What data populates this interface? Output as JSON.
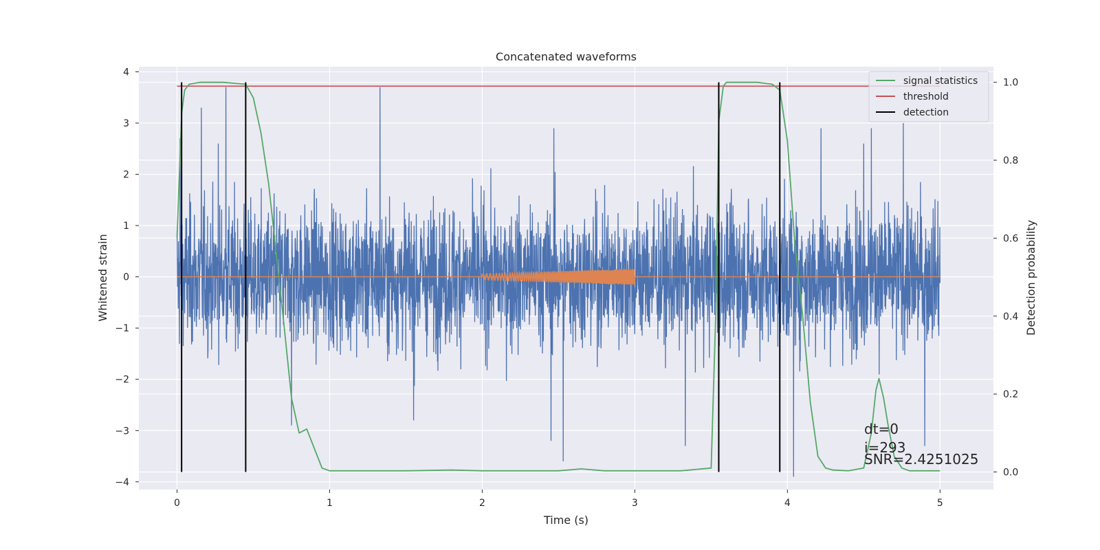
{
  "chart_data": {
    "type": "line",
    "title": "Concatenated waveforms",
    "xlabel": "Time (s)",
    "ylabel": "Whitened strain",
    "y2label": "Detection probability",
    "xlim": [
      -0.25,
      5.35
    ],
    "ylim": [
      -4.15,
      4.1
    ],
    "y2lim": [
      -0.045,
      1.04
    ],
    "x_ticks": [
      0,
      1,
      2,
      3,
      4,
      5
    ],
    "y_ticks": [
      -4,
      -3,
      -2,
      -1,
      0,
      1,
      2,
      3,
      4
    ],
    "y2_ticks": [
      0.0,
      0.2,
      0.4,
      0.6,
      0.8,
      1.0
    ],
    "grid": true,
    "legend_position": "top-right",
    "colors": {
      "strain": "#4c72b0",
      "template": "#dd8452",
      "signal_statistics": "#55a868",
      "threshold": "#c44e52",
      "detection": "#000000",
      "plot_background": "#eaeaf2",
      "grid": "#ffffff"
    },
    "series": [
      {
        "key": "strain",
        "axis": "left",
        "x_range": [
          0,
          5
        ],
        "envelope_typical": 2.1,
        "peaks": [
          {
            "x": 0.02,
            "y": 2.7
          },
          {
            "x": 0.16,
            "y": 3.3
          },
          {
            "x": 0.27,
            "y": 2.6
          },
          {
            "x": 0.32,
            "y": 3.7
          },
          {
            "x": 0.45,
            "y": -2.6
          },
          {
            "x": 0.75,
            "y": -2.9
          },
          {
            "x": 1.33,
            "y": 3.7
          },
          {
            "x": 1.55,
            "y": -2.8
          },
          {
            "x": 2.45,
            "y": -3.2
          },
          {
            "x": 2.47,
            "y": 2.9
          },
          {
            "x": 2.53,
            "y": -3.6
          },
          {
            "x": 3.33,
            "y": -3.3
          },
          {
            "x": 4.04,
            "y": -3.9
          },
          {
            "x": 4.22,
            "y": 2.9
          },
          {
            "x": 4.5,
            "y": 2.6
          },
          {
            "x": 4.55,
            "y": 2.9
          },
          {
            "x": 4.76,
            "y": 3.0
          },
          {
            "x": 4.9,
            "y": -3.3
          }
        ]
      },
      {
        "key": "template",
        "axis": "left",
        "x_range": [
          2,
          3
        ],
        "amplitude_start": 0.06,
        "amplitude_end": 0.16,
        "baseline": 0
      },
      {
        "name": "signal statistics",
        "key": "signal_statistics",
        "axis": "right",
        "x": [
          0,
          0.03,
          0.05,
          0.08,
          0.15,
          0.3,
          0.45,
          0.5,
          0.55,
          0.6,
          0.65,
          0.7,
          0.75,
          0.8,
          0.85,
          0.9,
          0.95,
          1.0,
          1.2,
          1.5,
          1.8,
          2.0,
          2.2,
          2.5,
          2.65,
          2.8,
          3.0,
          3.3,
          3.5,
          3.53,
          3.55,
          3.58,
          3.6,
          3.7,
          3.8,
          3.9,
          3.95,
          4.0,
          4.05,
          4.1,
          4.15,
          4.2,
          4.25,
          4.3,
          4.4,
          4.5,
          4.55,
          4.58,
          4.6,
          4.63,
          4.66,
          4.7,
          4.75,
          4.8,
          5.0
        ],
        "values": [
          0.6,
          0.92,
          0.98,
          0.995,
          1.0,
          1.0,
          0.995,
          0.96,
          0.87,
          0.74,
          0.56,
          0.38,
          0.19,
          0.1,
          0.11,
          0.06,
          0.01,
          0.003,
          0.003,
          0.003,
          0.005,
          0.003,
          0.003,
          0.003,
          0.008,
          0.003,
          0.003,
          0.003,
          0.01,
          0.4,
          0.9,
          0.99,
          1.0,
          1.0,
          1.0,
          0.995,
          0.98,
          0.85,
          0.58,
          0.4,
          0.18,
          0.04,
          0.01,
          0.005,
          0.003,
          0.01,
          0.1,
          0.21,
          0.24,
          0.19,
          0.12,
          0.04,
          0.01,
          0.003,
          0.003
        ]
      },
      {
        "name": "threshold",
        "key": "threshold",
        "axis": "right",
        "x": [
          0,
          5
        ],
        "values": [
          0.99,
          0.99
        ]
      },
      {
        "name": "detection",
        "key": "detection",
        "axis": "right",
        "x_lines": [
          0.03,
          0.45,
          3.55,
          3.95
        ],
        "y_range": [
          0.0,
          1.0
        ]
      }
    ],
    "annotations": [
      "dt=0",
      "i=293",
      "SNR=2.4251025"
    ]
  }
}
